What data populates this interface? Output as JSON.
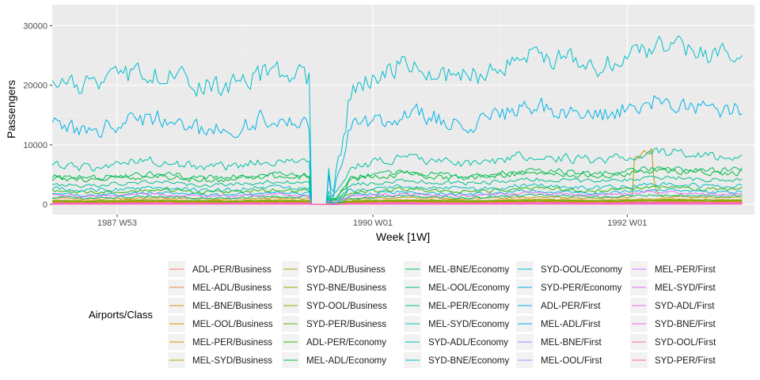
{
  "chart_data": {
    "type": "line",
    "xlabel": "Week [1W]",
    "ylabel": "Passengers",
    "x_range": [
      "1987 W26",
      "1992 W48"
    ],
    "x_ticks": [
      {
        "label": "1987 W53",
        "value": 1987.99
      },
      {
        "label": "1990 W01",
        "value": 1990.0
      },
      {
        "label": "1992 W01",
        "value": 1992.0
      }
    ],
    "ylim": [
      -1700,
      33500
    ],
    "y_ticks": [
      0,
      10000,
      20000,
      30000
    ],
    "y_tick_labels": [
      "0",
      "10000",
      "20000",
      "30000"
    ],
    "grid": true,
    "background": "#ebebeb",
    "legend_position": "bottom",
    "legend_title": "Airports/Class",
    "gap": {
      "start": 1989.5,
      "end": 1989.65
    },
    "series": [
      {
        "name": "ADL-PER/Business",
        "color": "#F8766D",
        "base": 300,
        "amp": 60
      },
      {
        "name": "MEL-ADL/Business",
        "color": "#F07E4F",
        "base": 500,
        "amp": 90
      },
      {
        "name": "MEL-BNE/Business",
        "color": "#E7861B",
        "base": 450,
        "amp": 80
      },
      {
        "name": "MEL-OOL/Business",
        "color": "#DB8E00",
        "base": 120,
        "amp": 40
      },
      {
        "name": "MEL-PER/Business",
        "color": "#CF9400",
        "base": 700,
        "amp": 120
      },
      {
        "name": "MEL-SYD/Business",
        "color": "#BF9C00",
        "base": 1000,
        "amp": 200,
        "spike": 9500
      },
      {
        "name": "SYD-ADL/Business",
        "color": "#AEA200",
        "base": 400,
        "amp": 70
      },
      {
        "name": "SYD-BNE/Business",
        "color": "#99A800",
        "base": 500,
        "amp": 90
      },
      {
        "name": "SYD-OOL/Business",
        "color": "#82AD00",
        "base": 100,
        "amp": 30
      },
      {
        "name": "SYD-PER/Business",
        "color": "#63B200",
        "base": 600,
        "amp": 100
      },
      {
        "name": "ADL-PER/Economy",
        "color": "#2DB600",
        "base": 2200,
        "amp": 450
      },
      {
        "name": "MEL-ADL/Economy",
        "color": "#00B935",
        "base": 4400,
        "amp": 700
      },
      {
        "name": "MEL-BNE/Economy",
        "color": "#00BC59",
        "base": 4800,
        "amp": 700
      },
      {
        "name": "MEL-OOL/Economy",
        "color": "#00BE76",
        "base": 1200,
        "amp": 300
      },
      {
        "name": "MEL-PER/Economy",
        "color": "#00C08E",
        "base": 3500,
        "amp": 500
      },
      {
        "name": "MEL-SYD/Economy",
        "color": "#00C1A4",
        "base": 6800,
        "amp": 1100
      },
      {
        "name": "SYD-ADL/Economy",
        "color": "#00C0B8",
        "base": 2600,
        "amp": 500
      },
      {
        "name": "SYD-BNE/Economy",
        "color": "#00BECA",
        "base": 21000,
        "amp": 2600
      },
      {
        "name": "SYD-OOL/Economy",
        "color": "#00BAD9",
        "base": 1800,
        "amp": 400
      },
      {
        "name": "SYD-PER/Economy",
        "color": "#00B3E7",
        "base": 13500,
        "amp": 2200
      },
      {
        "name": "ADL-PER/First",
        "color": "#00ABF2",
        "base": 60,
        "amp": 20
      },
      {
        "name": "MEL-ADL/First",
        "color": "#00A1FC",
        "base": 90,
        "amp": 30
      },
      {
        "name": "MEL-BNE/First",
        "color": "#9590FF",
        "base": 150,
        "amp": 40
      },
      {
        "name": "MEL-OOL/First",
        "color": "#B983FF",
        "base": 40,
        "amp": 15
      },
      {
        "name": "MEL-PER/First",
        "color": "#D474FF",
        "base": 180,
        "amp": 50
      },
      {
        "name": "MEL-SYD/First",
        "color": "#E76BF3",
        "base": 1500,
        "amp": 350
      },
      {
        "name": "SYD-ADL/First",
        "color": "#F564E3",
        "base": 100,
        "amp": 30
      },
      {
        "name": "SYD-BNE/First",
        "color": "#FD61D1",
        "base": 200,
        "amp": 50
      },
      {
        "name": "SYD-OOL/First",
        "color": "#FF63BC",
        "base": 30,
        "amp": 10
      },
      {
        "name": "SYD-PER/First",
        "color": "#FF67A4",
        "base": 250,
        "amp": 60
      }
    ]
  }
}
